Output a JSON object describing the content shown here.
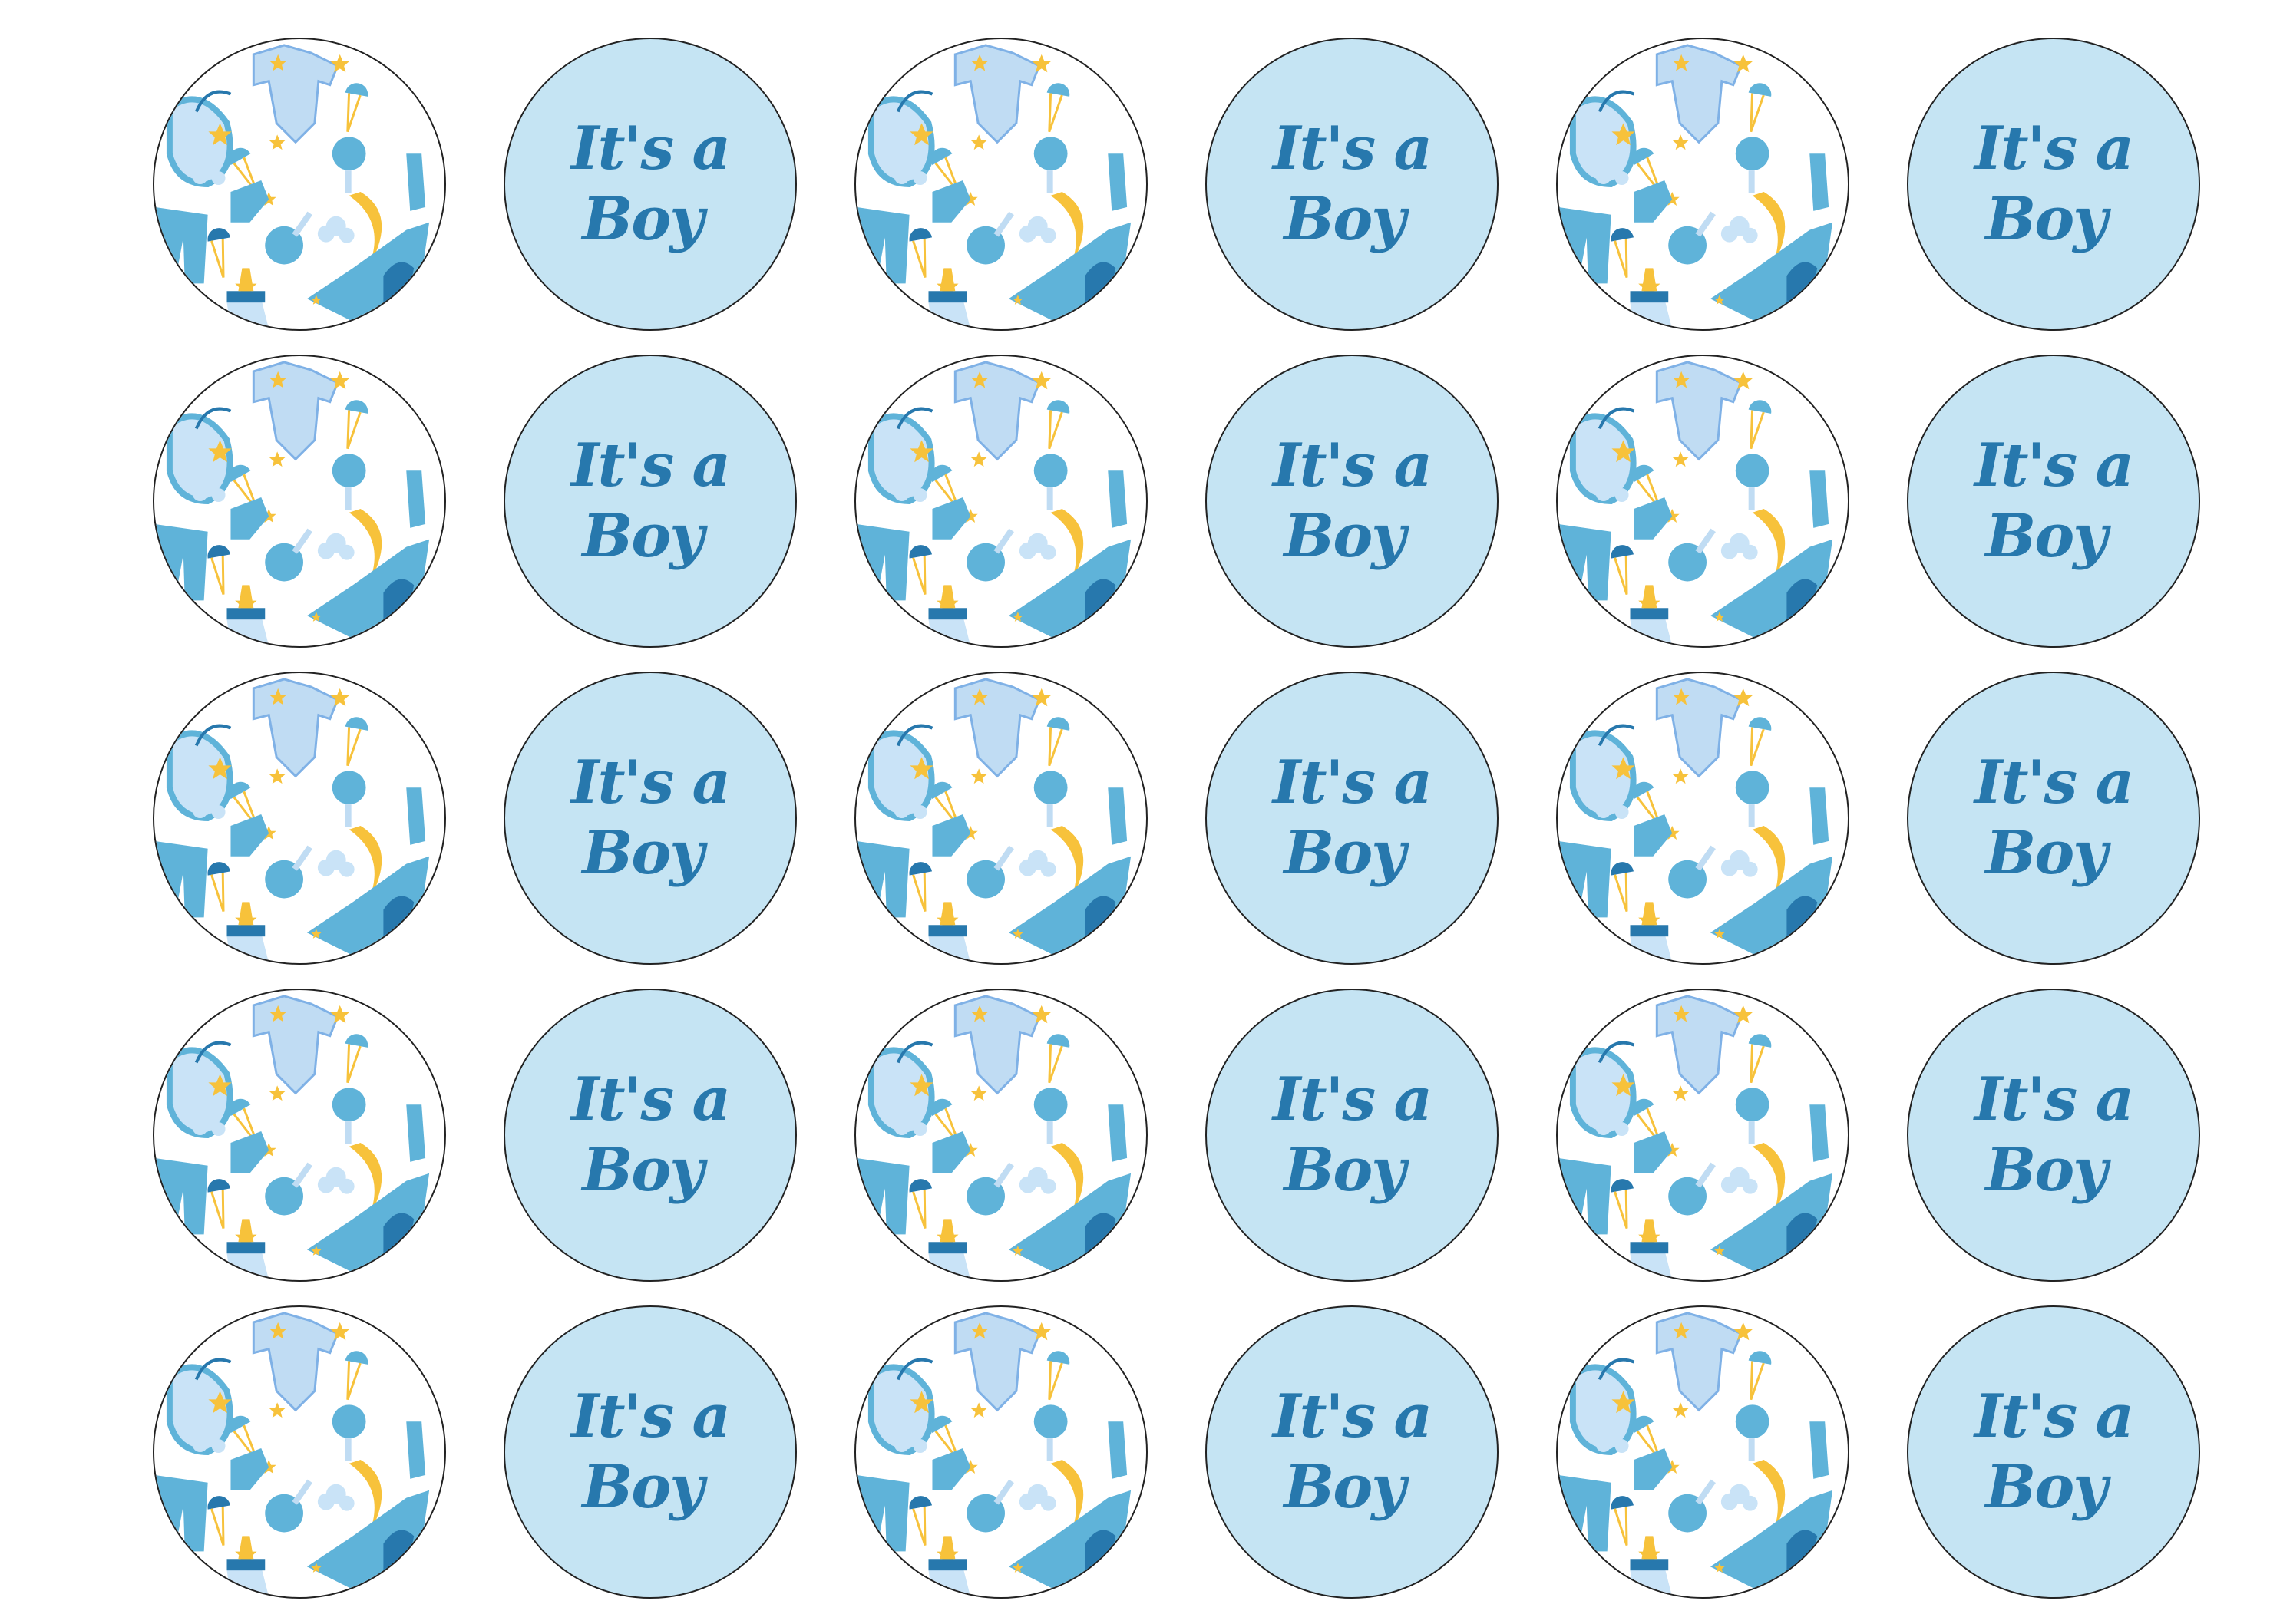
{
  "sheet": {
    "rows": 5,
    "columns": 6,
    "tile_order": [
      "pattern",
      "text",
      "pattern",
      "text",
      "pattern",
      "text"
    ],
    "label": {
      "line1": "It's a",
      "line2": "Boy"
    },
    "pattern_icons": [
      "bib-icon",
      "onesie-icon",
      "safety-pin-icon",
      "star-icon",
      "rattle-icon",
      "cloud-icon",
      "sock-icon",
      "pants-icon",
      "moon-icon",
      "baby-bottle-icon",
      "airplane-icon"
    ],
    "colors": {
      "text_tile_background": "#c5e4f3",
      "text": "#2778ad",
      "pattern_blue": "#5fb3d9",
      "pattern_light_blue": "#c0dcf3",
      "pattern_yellow": "#f7c23b",
      "outline": "#222222"
    }
  }
}
